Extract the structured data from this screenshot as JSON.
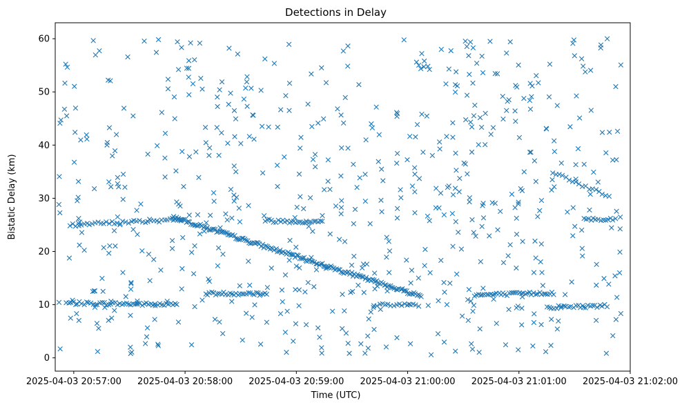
{
  "chart_data": {
    "type": "scatter",
    "title": "Detections in Delay",
    "xlabel": "Time (UTC)",
    "ylabel": "Bistatic Delay (km)",
    "marker": "x",
    "color": "#1f77b4",
    "x_unit": "seconds after 2025-04-03 20:56:00 UTC",
    "xlim": [
      50,
      360
    ],
    "ylim": [
      -2.5,
      63
    ],
    "xticks": [
      {
        "value": 60,
        "label": "2025-04-03 20:57:00"
      },
      {
        "value": 120,
        "label": "2025-04-03 20:58:00"
      },
      {
        "value": 180,
        "label": "2025-04-03 20:59:00"
      },
      {
        "value": 240,
        "label": "2025-04-03 21:00:00"
      },
      {
        "value": 300,
        "label": "2025-04-03 21:01:00"
      },
      {
        "value": 360,
        "label": "2025-04-03 21:02:00"
      }
    ],
    "yticks": [
      {
        "value": 0,
        "label": "0"
      },
      {
        "value": 10,
        "label": "10"
      },
      {
        "value": 20,
        "label": "20"
      },
      {
        "value": 30,
        "label": "30"
      },
      {
        "value": 40,
        "label": "40"
      },
      {
        "value": 50,
        "label": "50"
      },
      {
        "value": 60,
        "label": "60"
      }
    ],
    "time_span": [
      52,
      355
    ],
    "tracks": [
      {
        "name": "track-10km-early",
        "t_start": 56,
        "t_end": 115,
        "y_start": 10.3,
        "y_end": 10.0,
        "step": 1.2
      },
      {
        "name": "track-26km-early",
        "t_start": 58,
        "t_end": 118,
        "y_start": 25.0,
        "y_end": 26.0,
        "step": 1.5
      },
      {
        "name": "track-descending",
        "t_start": 113,
        "t_end": 248,
        "y_start": 26.5,
        "y_end": 11.5,
        "step": 0.8
      },
      {
        "name": "track-12km-mid",
        "t_start": 131,
        "t_end": 165,
        "y_start": 12.1,
        "y_end": 12.1,
        "step": 1.1
      },
      {
        "name": "track-26km-mid",
        "t_start": 163,
        "t_end": 195,
        "y_start": 25.8,
        "y_end": 25.5,
        "step": 1.2
      },
      {
        "name": "track-10km-mid",
        "t_start": 222,
        "t_end": 247,
        "y_start": 10.0,
        "y_end": 10.0,
        "step": 1.5
      },
      {
        "name": "track-12km-late",
        "t_start": 276,
        "t_end": 318,
        "y_start": 11.8,
        "y_end": 12.2,
        "step": 1.1
      },
      {
        "name": "track-9km-late",
        "t_start": 315,
        "t_end": 348,
        "y_start": 9.5,
        "y_end": 9.8,
        "step": 1.3
      },
      {
        "name": "track-26km-late",
        "t_start": 335,
        "t_end": 353,
        "y_start": 26.2,
        "y_end": 26.0,
        "step": 1.3
      },
      {
        "name": "track-32km-late",
        "t_start": 318,
        "t_end": 350,
        "y_start": 35.0,
        "y_end": 30.0,
        "step": 1.8
      }
    ],
    "clutter": {
      "count": 650,
      "y_min": 0.5,
      "y_max": 60,
      "seed": 7
    }
  }
}
